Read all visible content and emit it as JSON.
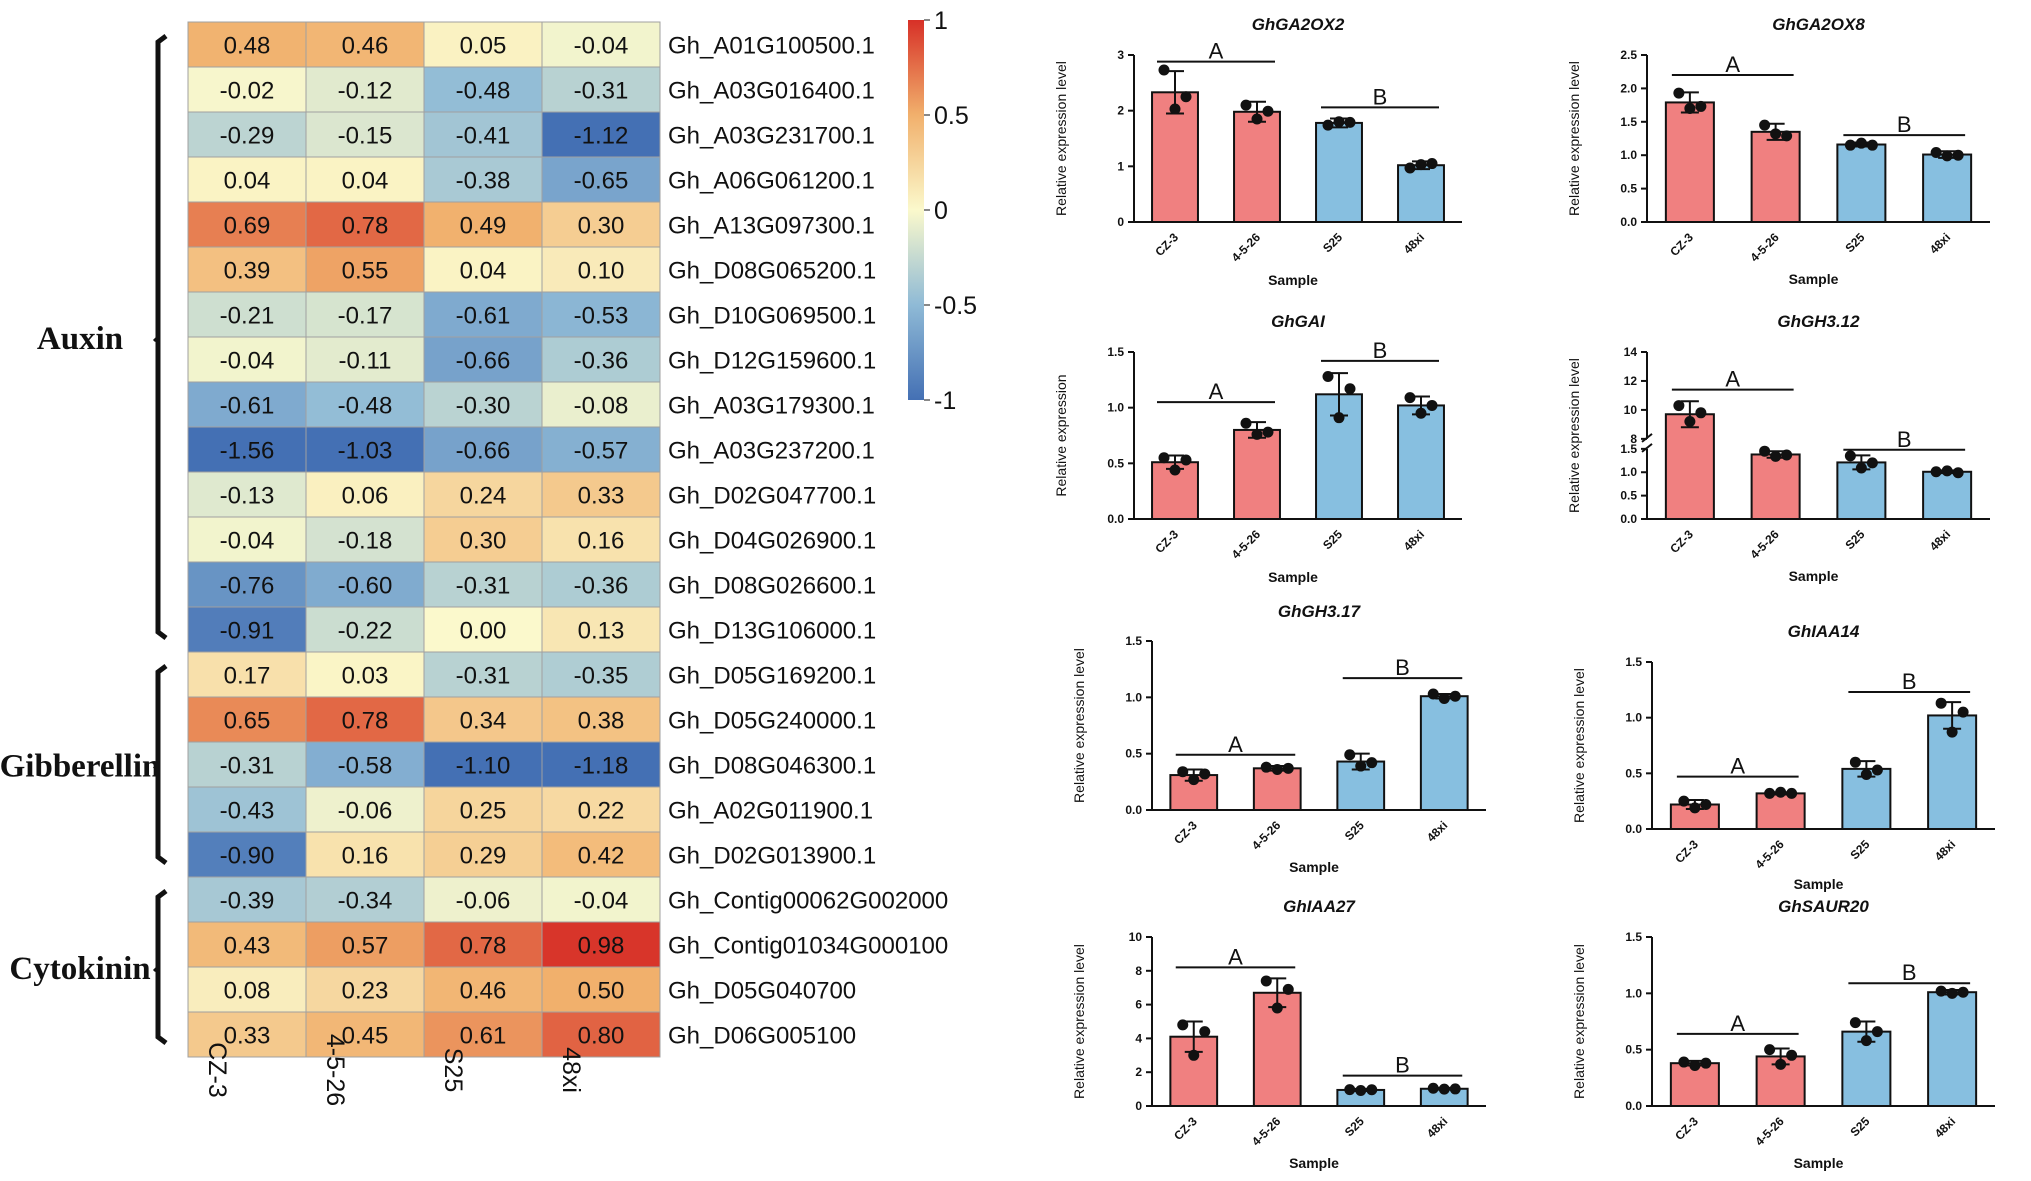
{
  "colors": {
    "red_bar": "#F08080",
    "blue_bar": "#87BFE0",
    "scale_low": "#4470B4",
    "scale_mid": "#FBF9CC",
    "scale_high": "#D73027"
  },
  "chart_data": [
    {
      "type": "heatmap",
      "columns": [
        "CZ-3",
        "4-5-26",
        "S25",
        "48xi"
      ],
      "rows": [
        {
          "gene": "Gh_A01G100500.1",
          "values": [
            "0.48",
            "0.46",
            "0.05",
            "-0.04"
          ]
        },
        {
          "gene": "Gh_A03G016400.1",
          "values": [
            "-0.02",
            "-0.12",
            "-0.48",
            "-0.31"
          ]
        },
        {
          "gene": "Gh_A03G231700.1",
          "values": [
            "-0.29",
            "-0.15",
            "-0.41",
            "-1.12"
          ]
        },
        {
          "gene": "Gh_A06G061200.1",
          "values": [
            "0.04",
            "0.04",
            "-0.38",
            "-0.65"
          ]
        },
        {
          "gene": "Gh_A13G097300.1",
          "values": [
            "0.69",
            "0.78",
            "0.49",
            "0.30"
          ]
        },
        {
          "gene": "Gh_D08G065200.1",
          "values": [
            "0.39",
            "0.55",
            "0.04",
            "0.10"
          ]
        },
        {
          "gene": "Gh_D10G069500.1",
          "values": [
            "-0.21",
            "-0.17",
            "-0.61",
            "-0.53"
          ]
        },
        {
          "gene": "Gh_D12G159600.1",
          "values": [
            "-0.04",
            "-0.11",
            "-0.66",
            "-0.36"
          ]
        },
        {
          "gene": "Gh_A03G179300.1",
          "values": [
            "-0.61",
            "-0.48",
            "-0.30",
            "-0.08"
          ]
        },
        {
          "gene": "Gh_A03G237200.1",
          "values": [
            "-1.56",
            "-1.03",
            "-0.66",
            "-0.57"
          ]
        },
        {
          "gene": "Gh_D02G047700.1",
          "values": [
            "-0.13",
            "0.06",
            "0.24",
            "0.33"
          ]
        },
        {
          "gene": "Gh_D04G026900.1",
          "values": [
            "-0.04",
            "-0.18",
            "0.30",
            "0.16"
          ]
        },
        {
          "gene": "Gh_D08G026600.1",
          "values": [
            "-0.76",
            "-0.60",
            "-0.31",
            "-0.36"
          ]
        },
        {
          "gene": "Gh_D13G106000.1",
          "values": [
            "-0.91",
            "-0.22",
            "0.00",
            "0.13"
          ]
        },
        {
          "gene": "Gh_D05G169200.1",
          "values": [
            "0.17",
            "0.03",
            "-0.31",
            "-0.35"
          ]
        },
        {
          "gene": "Gh_D05G240000.1",
          "values": [
            "0.65",
            "0.78",
            "0.34",
            "0.38"
          ]
        },
        {
          "gene": "Gh_D08G046300.1",
          "values": [
            "-0.31",
            "-0.58",
            "-1.10",
            "-1.18"
          ]
        },
        {
          "gene": "Gh_A02G011900.1",
          "values": [
            "-0.43",
            "-0.06",
            "0.25",
            "0.22"
          ]
        },
        {
          "gene": "Gh_D02G013900.1",
          "values": [
            "-0.90",
            "0.16",
            "0.29",
            "0.42"
          ]
        },
        {
          "gene": "Gh_Contig00062G002000",
          "values": [
            "-0.39",
            "-0.34",
            "-0.06",
            "-0.04"
          ]
        },
        {
          "gene": "Gh_Contig01034G000100",
          "values": [
            "0.43",
            "0.57",
            "0.78",
            "0.98"
          ]
        },
        {
          "gene": "Gh_D05G040700",
          "values": [
            "0.08",
            "0.23",
            "0.46",
            "0.50"
          ]
        },
        {
          "gene": "Gh_D06G005100",
          "values": [
            "0.33",
            "0.45",
            "0.61",
            "0.80"
          ]
        }
      ],
      "groups": [
        {
          "name": "Auxin",
          "from_row": 0,
          "to_row": 13
        },
        {
          "name": "Gibberellin",
          "from_row": 14,
          "to_row": 18
        },
        {
          "name": "Cytokinin",
          "from_row": 19,
          "to_row": 22
        }
      ],
      "colorbar": {
        "min": -1,
        "max": 1,
        "ticks": [
          "1",
          "0.5",
          "0",
          "-0.5",
          "-1"
        ]
      }
    },
    {
      "type": "bar",
      "title": "GhGA2OX2",
      "ylabel": "Relative expression level",
      "xlabel": "Sample",
      "categories": [
        "CZ-3",
        "4-5-26",
        "S25",
        "48xi"
      ],
      "values": [
        2.33,
        1.98,
        1.78,
        1.02
      ],
      "errors": [
        0.38,
        0.18,
        0.08,
        0.07
      ],
      "points": [
        [
          2.73,
          2.03,
          2.25
        ],
        [
          2.1,
          1.85,
          1.99
        ],
        [
          1.74,
          1.8,
          1.79
        ],
        [
          0.97,
          1.03,
          1.05
        ]
      ],
      "ylim": [
        0,
        3
      ],
      "yticks": [
        "0",
        "1",
        "2",
        "3"
      ],
      "groups": [
        {
          "label": "A",
          "from": 0,
          "to": 1,
          "y": 2.88
        },
        {
          "label": "B",
          "from": 2,
          "to": 3,
          "y": 2.06
        }
      ]
    },
    {
      "type": "bar",
      "title": "GhGA2OX8",
      "ylabel": "Relative expression level",
      "xlabel": "Sample",
      "categories": [
        "CZ-3",
        "4-5-26",
        "S25",
        "48xi"
      ],
      "values": [
        1.79,
        1.35,
        1.16,
        1.01
      ],
      "errors": [
        0.15,
        0.12,
        0.03,
        0.05
      ],
      "points": [
        [
          1.93,
          1.7,
          1.73
        ],
        [
          1.45,
          1.32,
          1.29
        ],
        [
          1.15,
          1.18,
          1.15
        ],
        [
          1.04,
          0.99,
          1.0
        ]
      ],
      "ylim": [
        0,
        2.5
      ],
      "yticks": [
        "0.0",
        "0.5",
        "1.0",
        "1.5",
        "2.0",
        "2.5"
      ],
      "groups": [
        {
          "label": "A",
          "from": 0,
          "to": 1,
          "y": 2.2
        },
        {
          "label": "B",
          "from": 2,
          "to": 3,
          "y": 1.3
        }
      ]
    },
    {
      "type": "bar",
      "title": "GhGAI",
      "ylabel": "Relative expression",
      "xlabel": "Sample",
      "categories": [
        "CZ-3",
        "4-5-26",
        "S25",
        "48xi"
      ],
      "values": [
        0.51,
        0.8,
        1.12,
        1.02
      ],
      "errors": [
        0.06,
        0.07,
        0.19,
        0.08
      ],
      "points": [
        [
          0.55,
          0.44,
          0.53
        ],
        [
          0.86,
          0.76,
          0.78
        ],
        [
          1.28,
          0.91,
          1.17
        ],
        [
          1.09,
          0.95,
          1.02
        ]
      ],
      "ylim": [
        0,
        1.5
      ],
      "yticks": [
        "0.0",
        "0.5",
        "1.0",
        "1.5"
      ],
      "groups": [
        {
          "label": "A",
          "from": 0,
          "to": 1,
          "y": 1.05
        },
        {
          "label": "B",
          "from": 2,
          "to": 3,
          "y": 1.42
        }
      ]
    },
    {
      "type": "bar",
      "title": "GhGH3.12",
      "ylabel": "Relative expression level",
      "xlabel": "Sample",
      "categories": [
        "CZ-3",
        "4-5-26",
        "S25",
        "48xi"
      ],
      "values": [
        9.7,
        1.38,
        1.21,
        1.01
      ],
      "errors": [
        0.9,
        0.07,
        0.15,
        0.03
      ],
      "points": [
        [
          10.3,
          9.2,
          9.8
        ],
        [
          1.45,
          1.34,
          1.37
        ],
        [
          1.35,
          1.09,
          1.2
        ],
        [
          1.01,
          1.03,
          0.99
        ]
      ],
      "ylim": [
        0,
        14
      ],
      "axis_break": [
        1.5,
        8
      ],
      "yticks_low": [
        "0.0",
        "0.5",
        "1.0",
        "1.5"
      ],
      "yticks_high": [
        "8",
        "10",
        "12",
        "14"
      ],
      "groups": [
        {
          "label": "A",
          "from": 0,
          "to": 1,
          "y": 11.4
        },
        {
          "label": "B",
          "from": 2,
          "to": 3,
          "y": 1.48
        }
      ]
    },
    {
      "type": "bar",
      "title": "GhGH3.17",
      "ylabel": "Relative expression level",
      "xlabel": "Sample",
      "categories": [
        "CZ-3",
        "4-5-26",
        "S25",
        "48xi"
      ],
      "values": [
        0.31,
        0.37,
        0.43,
        1.01
      ],
      "errors": [
        0.05,
        0.02,
        0.07,
        0.02
      ],
      "points": [
        [
          0.34,
          0.27,
          0.32
        ],
        [
          0.38,
          0.36,
          0.37
        ],
        [
          0.49,
          0.39,
          0.42
        ],
        [
          1.03,
          0.99,
          1.01
        ]
      ],
      "ylim": [
        0,
        1.5
      ],
      "yticks": [
        "0.0",
        "0.5",
        "1.0",
        "1.5"
      ],
      "groups": [
        {
          "label": "A",
          "from": 0,
          "to": 1,
          "y": 0.49
        },
        {
          "label": "B",
          "from": 2,
          "to": 3,
          "y": 1.17
        }
      ]
    },
    {
      "type": "bar",
      "title": "GhIAA14",
      "ylabel": "Relative expression level",
      "xlabel": "Sample",
      "categories": [
        "CZ-3",
        "4-5-26",
        "S25",
        "48xi"
      ],
      "values": [
        0.22,
        0.32,
        0.54,
        1.02
      ],
      "errors": [
        0.04,
        0.01,
        0.07,
        0.12
      ],
      "points": [
        [
          0.25,
          0.19,
          0.22
        ],
        [
          0.32,
          0.33,
          0.32
        ],
        [
          0.6,
          0.49,
          0.53
        ],
        [
          1.13,
          0.87,
          1.05
        ]
      ],
      "ylim": [
        0,
        1.5
      ],
      "yticks": [
        "0.0",
        "0.5",
        "1.0",
        "1.5"
      ],
      "groups": [
        {
          "label": "A",
          "from": 0,
          "to": 1,
          "y": 0.47
        },
        {
          "label": "B",
          "from": 2,
          "to": 3,
          "y": 1.23
        }
      ]
    },
    {
      "type": "bar",
      "title": "GhIAA27",
      "ylabel": "Relative expression level",
      "xlabel": "Sample",
      "categories": [
        "CZ-3",
        "4-5-26",
        "S25",
        "48xi"
      ],
      "values": [
        4.1,
        6.7,
        0.95,
        1.02
      ],
      "errors": [
        0.9,
        0.85,
        0.06,
        0.05
      ],
      "points": [
        [
          4.8,
          3.0,
          4.4
        ],
        [
          7.4,
          5.8,
          6.9
        ],
        [
          0.97,
          0.92,
          0.96
        ],
        [
          1.05,
          1.0,
          1.01
        ]
      ],
      "ylim": [
        0,
        10
      ],
      "yticks": [
        "0",
        "2",
        "4",
        "6",
        "8",
        "10"
      ],
      "groups": [
        {
          "label": "A",
          "from": 0,
          "to": 1,
          "y": 8.2
        },
        {
          "label": "B",
          "from": 2,
          "to": 3,
          "y": 1.8
        }
      ]
    },
    {
      "type": "bar",
      "title": "GhSAUR20",
      "ylabel": "Relative expression level",
      "xlabel": "Sample",
      "categories": [
        "CZ-3",
        "4-5-26",
        "S25",
        "48xi"
      ],
      "values": [
        0.38,
        0.44,
        0.66,
        1.01
      ],
      "errors": [
        0.02,
        0.07,
        0.09,
        0.02
      ],
      "points": [
        [
          0.39,
          0.36,
          0.38
        ],
        [
          0.5,
          0.37,
          0.45
        ],
        [
          0.74,
          0.58,
          0.66
        ],
        [
          1.02,
          1.0,
          1.01
        ]
      ],
      "ylim": [
        0,
        1.5
      ],
      "yticks": [
        "0.0",
        "0.5",
        "1.0",
        "1.5"
      ],
      "groups": [
        {
          "label": "A",
          "from": 0,
          "to": 1,
          "y": 0.64
        },
        {
          "label": "B",
          "from": 2,
          "to": 3,
          "y": 1.09
        }
      ]
    }
  ]
}
